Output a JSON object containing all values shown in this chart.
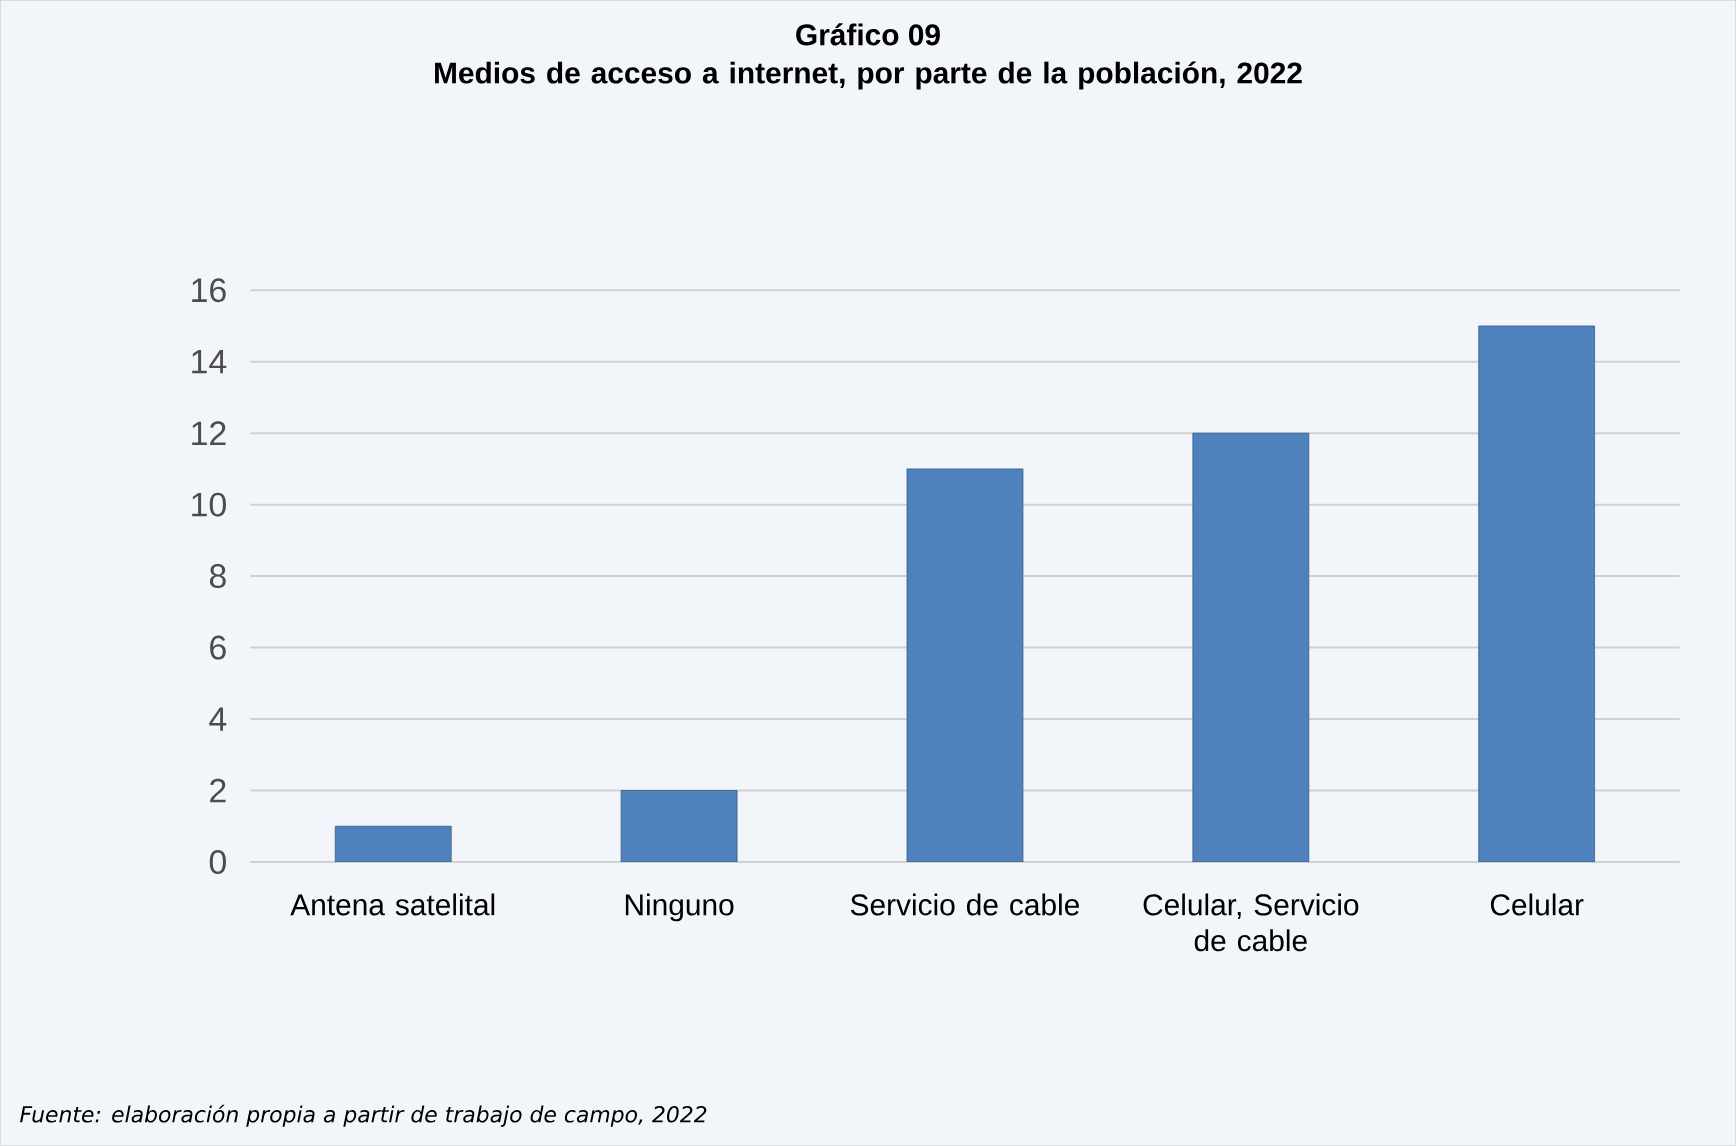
{
  "chart_data": {
    "type": "bar",
    "title": "Gráfico 09",
    "subtitle": "Medios de acceso a internet, por parte de la población, 2022",
    "categories": [
      "Antena satelital",
      "Ninguno",
      "Servicio de cable",
      "Celular, Servicio de cable",
      "Celular"
    ],
    "values": [
      1,
      2,
      11,
      12,
      15
    ],
    "color": "#4f81bd",
    "ylim": [
      0,
      16
    ],
    "yticks": [
      0,
      2,
      4,
      6,
      8,
      10,
      12,
      14,
      16
    ],
    "grid": "y",
    "annotations": [
      "Fuente: elaboración propia a partir de trabajo de campo, 2022"
    ]
  }
}
